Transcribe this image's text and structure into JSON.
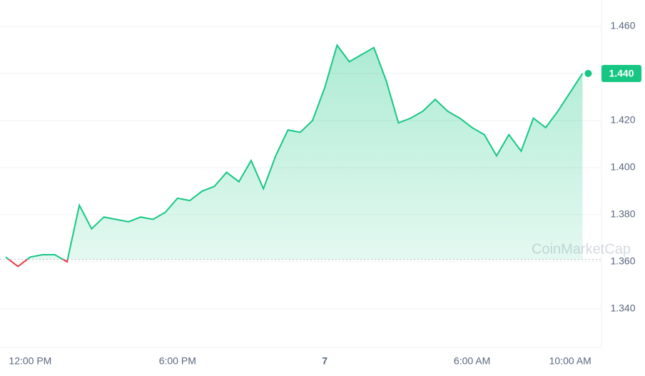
{
  "chart_data": {
    "type": "line",
    "categories": [
      null,
      null,
      "12:00 PM",
      null,
      null,
      null,
      null,
      null,
      null,
      null,
      null,
      null,
      null,
      null,
      "6:00 PM",
      null,
      null,
      null,
      null,
      null,
      null,
      null,
      null,
      null,
      null,
      null,
      "7",
      null,
      null,
      null,
      null,
      null,
      null,
      null,
      null,
      null,
      null,
      null,
      "6:00 AM",
      null,
      null,
      null,
      null,
      null,
      null,
      null,
      "10:00 AM",
      null
    ],
    "series": [
      {
        "name": null,
        "color": "#16c784",
        "down_color": "#ea3943",
        "values": [
          1.362,
          1.358,
          1.362,
          1.363,
          1.363,
          1.36,
          1.384,
          1.374,
          1.379,
          1.378,
          1.377,
          1.379,
          1.378,
          1.381,
          1.387,
          1.386,
          1.39,
          1.392,
          1.398,
          1.394,
          1.403,
          1.391,
          1.405,
          1.416,
          1.415,
          1.42,
          1.434,
          1.452,
          1.445,
          1.448,
          1.451,
          1.437,
          1.419,
          1.421,
          1.424,
          1.429,
          1.424,
          1.421,
          1.417,
          1.414,
          1.405,
          1.414,
          1.407,
          1.421,
          1.417,
          1.424,
          1.432,
          1.44
        ]
      }
    ],
    "baseline": 1.361,
    "current_price": 1.44,
    "current_label": "1.440",
    "watermark": "CoinMarketCap",
    "ylim": [
      1.3236,
      1.4712
    ],
    "yticks": [
      {
        "value": 1.34,
        "label": "1.340"
      },
      {
        "value": 1.36,
        "label": "1.360"
      },
      {
        "value": 1.38,
        "label": "1.380"
      },
      {
        "value": 1.4,
        "label": "1.400"
      },
      {
        "value": 1.42,
        "label": "1.420"
      },
      {
        "value": 1.44,
        "label": "1.440"
      },
      {
        "value": 1.46,
        "label": "1.460"
      }
    ],
    "grid": true
  }
}
